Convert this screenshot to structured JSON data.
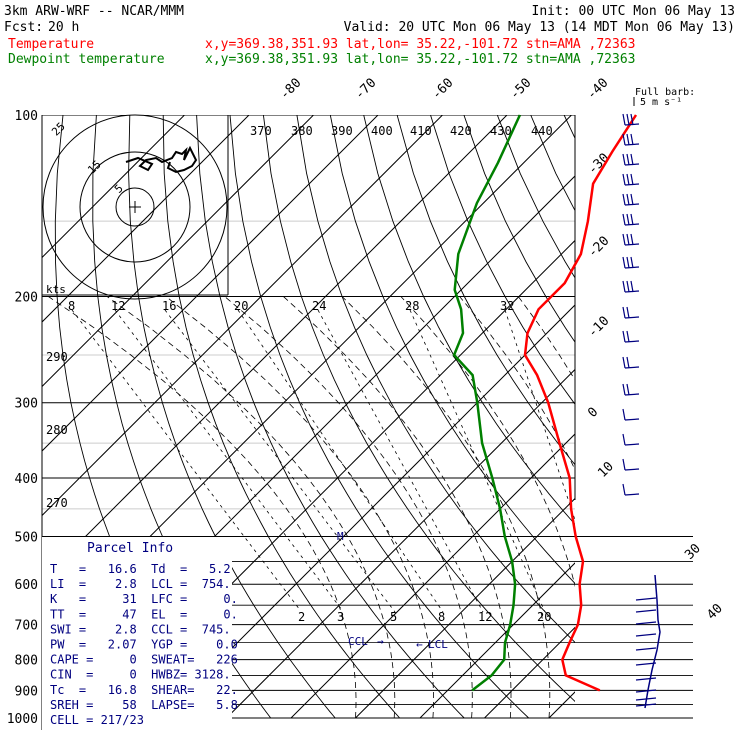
{
  "header": {
    "model": "3km ARW-WRF -- NCAR/MMM",
    "init": "Init: 00 UTC Mon 06 May 13",
    "fcst_label": "Fcst:",
    "fcst_value": "20 h",
    "valid": "Valid: 20 UTC Mon 06 May 13 (14 MDT Mon 06 May 13)",
    "temp_label": "Temperature",
    "dew_label": "Dewpoint temperature",
    "temp_info": "x,y=369.38,351.93   lat,lon= 35.22,-101.72  stn=AMA ,72363",
    "dew_info": "x,y=369.38,351.93   lat,lon= 35.22,-101.72  stn=AMA ,72363"
  },
  "colors": {
    "temperature": "#ff0000",
    "dewpoint": "#008000",
    "wind": "#000080",
    "parcel_text": "#000080",
    "header_text": "#000000"
  },
  "barb_legend": {
    "line1": "Full barb:",
    "line2": "5 m s⁻¹"
  },
  "hodograph": {
    "ring_labels": [
      "5",
      "15",
      "25"
    ],
    "kts_label": "kts"
  },
  "chart_data": {
    "type": "line",
    "y_scale": "log-pressure",
    "ylim": [
      1000,
      100
    ],
    "pressure_ticks": [
      "100",
      "200",
      "300",
      "400",
      "500",
      "600",
      "700",
      "800",
      "900",
      "1000"
    ],
    "isotherm_labels_top": [
      "-80",
      "-70",
      "-60",
      "-50",
      "-40"
    ],
    "isotherm_labels_right": [
      "-30",
      "-20",
      "-10",
      "0",
      "10"
    ],
    "isotherm_labels_bottom_right": [
      "30",
      "40"
    ],
    "theta_labels_top": [
      "370",
      "380",
      "390",
      "400",
      "410",
      "420",
      "430",
      "440"
    ],
    "theta_labels_left": [
      "290",
      "280",
      "270"
    ],
    "mixing_ratio_labels_200": [
      "8",
      "12",
      "16",
      "20",
      "24",
      "28",
      "32"
    ],
    "mixing_ratio_labels_low": [
      "2",
      "3",
      "5",
      "8",
      "12",
      "20"
    ],
    "series": [
      {
        "name": "Temperature",
        "points": [
          [
            900,
            23.6
          ],
          [
            850,
            16
          ],
          [
            800,
            13
          ],
          [
            750,
            11.5
          ],
          [
            700,
            10
          ],
          [
            650,
            7.5
          ],
          [
            600,
            4
          ],
          [
            550,
            1
          ],
          [
            500,
            -4
          ],
          [
            450,
            -9
          ],
          [
            400,
            -14
          ],
          [
            350,
            -21
          ],
          [
            300,
            -29
          ],
          [
            270,
            -35
          ],
          [
            250,
            -40
          ],
          [
            230,
            -43
          ],
          [
            210,
            -45
          ],
          [
            190,
            -45
          ],
          [
            170,
            -47
          ],
          [
            150,
            -51
          ],
          [
            130,
            -56
          ],
          [
            115,
            -58
          ],
          [
            100,
            -60
          ]
        ]
      },
      {
        "name": "Dewpoint temperature",
        "points": [
          [
            900,
            3.8
          ],
          [
            850,
            4.5
          ],
          [
            800,
            4
          ],
          [
            750,
            1.5
          ],
          [
            700,
            -0.5
          ],
          [
            650,
            -3
          ],
          [
            600,
            -6
          ],
          [
            550,
            -10
          ],
          [
            500,
            -15
          ],
          [
            450,
            -20
          ],
          [
            400,
            -26
          ],
          [
            350,
            -33
          ],
          [
            300,
            -40
          ],
          [
            270,
            -45
          ],
          [
            250,
            -51
          ],
          [
            230,
            -53
          ],
          [
            210,
            -57
          ],
          [
            195,
            -61
          ],
          [
            170,
            -66
          ],
          [
            140,
            -71
          ],
          [
            120,
            -74
          ],
          [
            100,
            -78
          ]
        ]
      }
    ],
    "annotations": [
      "CCL",
      "LCL",
      "M"
    ]
  },
  "parcel_info": {
    "title": "Parcel Info",
    "rows": [
      "T   =   16.6  Td  =   5.2",
      "LI  =    2.8  LCL =  754.",
      "K   =     31  LFC =     0.",
      "TT  =     47  EL  =     0.",
      "SWI =    2.8  CCL =  745.",
      "PW  =   2.07  YGP =    0.0",
      "CAPE =     0  SWEAT=   226",
      "CIN  =     0  HWBZ= 3128.",
      "Tc  =   16.8  SHEAR=   22.",
      "SREH =    58  LAPSE=   5.8",
      "CELL = 217/23"
    ]
  }
}
